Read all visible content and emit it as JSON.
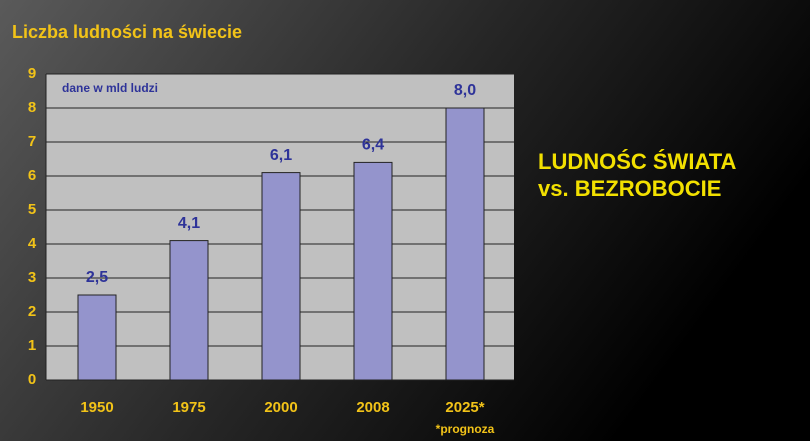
{
  "chart_data": {
    "type": "bar",
    "title": "Liczba ludności na świecie",
    "annotation": "dane w mld ludzi",
    "footnote": "*prognoza",
    "side_title": [
      "LUDNOŚC ŚWIATA",
      "vs. BEZROBOCIE"
    ],
    "categories": [
      "1950",
      "1975",
      "2000",
      "2008",
      "2025*"
    ],
    "values": [
      2.5,
      4.1,
      6.1,
      6.4,
      8.0
    ],
    "value_labels": [
      "2,5",
      "4,1",
      "6,1",
      "6,4",
      "8,0"
    ],
    "color": "#9494cc",
    "ylim": [
      0,
      9
    ],
    "yticks": [
      0,
      1,
      2,
      3,
      4,
      5,
      6,
      7,
      8,
      9
    ],
    "grid": true
  }
}
